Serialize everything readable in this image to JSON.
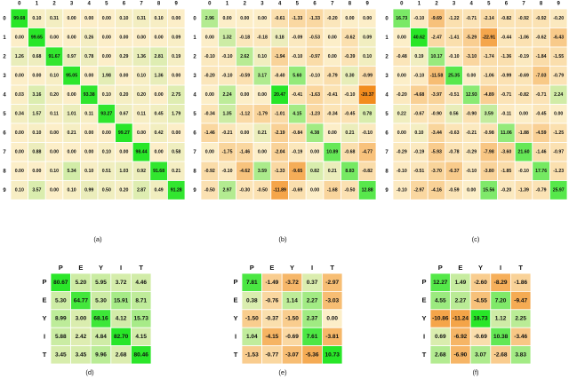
{
  "chart_data": [
    {
      "type": "heatmap",
      "caption": "(a)",
      "x_labels": [
        "0",
        "1",
        "2",
        "3",
        "4",
        "5",
        "6",
        "7",
        "8",
        "9"
      ],
      "y_labels": [
        "0",
        "1",
        "2",
        "3",
        "4",
        "5",
        "6",
        "7",
        "8",
        "9"
      ],
      "values": [
        [
          99.68,
          0.1,
          0.31,
          0,
          0,
          0,
          0.1,
          0.31,
          0.1,
          0
        ],
        [
          0,
          99.65,
          0,
          0,
          0.26,
          0,
          0,
          0,
          0,
          0.09
        ],
        [
          1.26,
          0.68,
          91.67,
          0.97,
          0.78,
          0,
          0.29,
          1.36,
          2.81,
          0.19
        ],
        [
          0,
          0,
          0.1,
          95.05,
          0,
          1.98,
          0,
          0.1,
          1.36,
          0
        ],
        [
          0.03,
          3.16,
          0.2,
          0,
          93.38,
          0.1,
          0.2,
          0.2,
          0,
          2.75
        ],
        [
          0.34,
          1.57,
          0.11,
          1.01,
          0.11,
          93.27,
          0.67,
          0.11,
          0.45,
          1.79
        ],
        [
          0,
          0.1,
          0,
          0.21,
          0,
          0,
          99.27,
          0,
          0.42,
          0
        ],
        [
          0,
          0.88,
          0,
          0,
          0,
          0.1,
          0,
          98.44,
          0,
          0.58
        ],
        [
          0,
          0,
          0.1,
          5.34,
          0.1,
          0.51,
          1.03,
          0.92,
          91.68,
          0.21
        ],
        [
          0.1,
          3.57,
          0,
          0.1,
          0.99,
          0.5,
          0.2,
          2.87,
          0.49,
          91.28
        ]
      ],
      "value_labels": [
        [
          "99.68",
          "0.10",
          "0.31",
          "0.00",
          "0.00",
          "0.00",
          "0.10",
          "0.31",
          "0.10",
          "0.00"
        ],
        [
          "0.00",
          "99.65",
          "0.00",
          "0.00",
          "0.26",
          "0.00",
          "0.00",
          "0.00",
          "0.00",
          "0.09"
        ],
        [
          "1.26",
          "0.68",
          "91.67",
          "0.97",
          "0.78",
          "0.00",
          "0.29",
          "1.36",
          "2.81",
          "0.19"
        ],
        [
          "0.00",
          "0.00",
          "0.10",
          "95.05",
          "0.00",
          "1.98",
          "0.00",
          "0.10",
          "1.36",
          "0.00"
        ],
        [
          "0.03",
          "3.16",
          "0.20",
          "0.00",
          "93.38",
          "0.10",
          "0.20",
          "0.20",
          "0.00",
          "2.75"
        ],
        [
          "0.34",
          "1.57",
          "0.11",
          "1.01",
          "0.11",
          "93.27",
          "0.67",
          "0.11",
          "0.45",
          "1.79"
        ],
        [
          "0.00",
          "0.10",
          "0.00",
          "0.21",
          "0.00",
          "0.00",
          "99.27",
          "0.00",
          "0.42",
          "0.00"
        ],
        [
          "0.00",
          "0.88",
          "0.00",
          "0.00",
          "0.00",
          "0.10",
          "0.00",
          "98.44",
          "0.00",
          "0.58"
        ],
        [
          "0.00",
          "0.00",
          "0.10",
          "5.34",
          "0.10",
          "0.51",
          "1.03",
          "0.92",
          "91.68",
          "0.21"
        ],
        [
          "0.10",
          "3.57",
          "0.00",
          "0.10",
          "0.99",
          "0.50",
          "0.20",
          "2.87",
          "0.49",
          "91.28"
        ]
      ]
    },
    {
      "type": "heatmap",
      "caption": "(b)",
      "x_labels": [
        "0",
        "1",
        "2",
        "3",
        "4",
        "5",
        "6",
        "7",
        "8",
        "9"
      ],
      "y_labels": [
        "0",
        "1",
        "2",
        "3",
        "4",
        "5",
        "6",
        "7",
        "8",
        "9"
      ],
      "values": [
        [
          2.96,
          0,
          0,
          0,
          -0.61,
          -1.33,
          -1.33,
          -0.2,
          0,
          0
        ],
        [
          0,
          1.32,
          -0.18,
          -0.18,
          0.18,
          -0.09,
          -0.53,
          0,
          -0.62,
          0.09
        ],
        [
          -0.1,
          -0.1,
          2.62,
          0.1,
          -1.94,
          -0.1,
          -0.97,
          0,
          -0.39,
          0.1
        ],
        [
          -0.2,
          -0.1,
          -0.59,
          3.17,
          -0.4,
          5.6,
          -0.1,
          -0.79,
          0.3,
          -0.99
        ],
        [
          0,
          2.24,
          0,
          0,
          20.47,
          -0.41,
          -1.63,
          -0.41,
          -0.1,
          -20.37
        ],
        [
          -0.34,
          1.35,
          -1.12,
          -1.79,
          -1.01,
          4.15,
          -1.23,
          -0.34,
          -0.45,
          0.78
        ],
        [
          -1.46,
          -0.21,
          0,
          0.21,
          -2.19,
          -0.84,
          4.38,
          0,
          0.21,
          -0.1
        ],
        [
          0,
          -1.75,
          -1.46,
          0,
          -2.04,
          -0.19,
          0,
          10.89,
          -0.68,
          -4.77
        ],
        [
          -0.92,
          -0.1,
          -4.62,
          3.59,
          -1.33,
          -9.65,
          0.82,
          0.21,
          8.83,
          -0.82
        ],
        [
          -0.5,
          2.97,
          -0.3,
          -0.5,
          -11.89,
          -0.69,
          0,
          -1.68,
          -0.5,
          12.88
        ]
      ],
      "value_labels": [
        [
          "2.96",
          "0.00",
          "0.00",
          "0.00",
          "-0.61",
          "-1.33",
          "-1.33",
          "-0.20",
          "0.00",
          "0.00"
        ],
        [
          "0.00",
          "1.32",
          "-0.18",
          "-0.18",
          "0.18",
          "-0.09",
          "-0.53",
          "0.00",
          "-0.62",
          "0.09"
        ],
        [
          "-0.10",
          "-0.10",
          "2.62",
          "0.10",
          "-1.94",
          "-0.10",
          "-0.97",
          "0.00",
          "-0.39",
          "0.10"
        ],
        [
          "-0.20",
          "-0.10",
          "-0.59",
          "3.17",
          "-0.40",
          "5.60",
          "-0.10",
          "-0.79",
          "0.30",
          "-0.99"
        ],
        [
          "0.00",
          "2.24",
          "0.00",
          "0.00",
          "20.47",
          "-0.41",
          "-1.63",
          "-0.41",
          "-0.10",
          "-20.37"
        ],
        [
          "-0.34",
          "1.35",
          "-1.12",
          "-1.79",
          "-1.01",
          "4.15",
          "-1.23",
          "-0.34",
          "-0.45",
          "0.78"
        ],
        [
          "-1.46",
          "-0.21",
          "0.00",
          "0.21",
          "-2.19",
          "-0.84",
          "4.38",
          "0.00",
          "0.21",
          "-0.10"
        ],
        [
          "0.00",
          "-1.75",
          "-1.46",
          "0.00",
          "-2.04",
          "-0.19",
          "0.00",
          "10.89",
          "-0.68",
          "-4.77"
        ],
        [
          "-0.92",
          "-0.10",
          "-4.62",
          "3.59",
          "-1.33",
          "-9.65",
          "0.82",
          "0.21",
          "8.83",
          "-0.82"
        ],
        [
          "-0.50",
          "2.97",
          "-0.30",
          "-0.50",
          "-11.89",
          "-0.69",
          "0.00",
          "-1.68",
          "-0.50",
          "12.88"
        ]
      ]
    },
    {
      "type": "heatmap",
      "caption": "(c)",
      "x_labels": [
        "0",
        "1",
        "2",
        "3",
        "4",
        "5",
        "6",
        "7",
        "8",
        "9"
      ],
      "y_labels": [
        "0",
        "1",
        "2",
        "3",
        "4",
        "5",
        "6",
        "7",
        "8",
        "9"
      ],
      "values": [
        [
          16.73,
          -0.1,
          -9.69,
          -1.22,
          -0.71,
          -2.14,
          -0.82,
          -0.92,
          -0.92,
          -0.2
        ],
        [
          0,
          40.62,
          -2.47,
          -1.41,
          -5.29,
          -22.91,
          -0.44,
          -1.06,
          -0.62,
          -6.43
        ],
        [
          -0.48,
          0.19,
          10.17,
          -0.1,
          -3.1,
          -1.74,
          -1.36,
          -0.19,
          -1.84,
          -1.55
        ],
        [
          0,
          -0.1,
          -11.58,
          25.35,
          0,
          -1.06,
          -0.99,
          -0.69,
          -7.03,
          -0.79
        ],
        [
          -0.2,
          -4.68,
          -3.97,
          -0.51,
          12.93,
          -4.89,
          -0.71,
          -0.82,
          -0.71,
          2.24
        ],
        [
          0.22,
          -0.67,
          -0.9,
          0.56,
          -0.9,
          3.59,
          -0.11,
          0,
          -0.45,
          0
        ],
        [
          0,
          0.1,
          -3.44,
          -0.63,
          -0.21,
          -0.98,
          11.06,
          -1.88,
          -4.59,
          -1.25
        ],
        [
          -0.29,
          -0.19,
          -5.93,
          -0.78,
          -0.29,
          -7.98,
          -3.6,
          21.6,
          -1.46,
          -0.97
        ],
        [
          -0.1,
          -0.51,
          -3.7,
          -6.37,
          -0.1,
          -3.8,
          -1.85,
          -0.1,
          17.76,
          -1.23
        ],
        [
          -0.1,
          -2.97,
          -4.16,
          -0.59,
          0,
          15.56,
          -0.2,
          -1.39,
          -0.79,
          25.97
        ]
      ],
      "value_labels": [
        [
          "16.73",
          "-0.10",
          "-9.69",
          "-1.22",
          "-0.71",
          "-2.14",
          "-0.82",
          "-0.92",
          "-0.92",
          "-0.20"
        ],
        [
          "0.00",
          "40.62",
          "-2.47",
          "-1.41",
          "-5.29",
          "-22.91",
          "-0.44",
          "-1.06",
          "-0.62",
          "-6.43"
        ],
        [
          "-0.48",
          "0.19",
          "10.17",
          "-0.10",
          "-3.10",
          "-1.74",
          "-1.36",
          "-0.19",
          "-1.84",
          "-1.55"
        ],
        [
          "0.00",
          "-0.10",
          "-11.58",
          "25.35",
          "0.00",
          "-1.06",
          "-0.99",
          "-0.69",
          "-7.03",
          "-0.79"
        ],
        [
          "-0.20",
          "-4.68",
          "-3.97",
          "-0.51",
          "12.93",
          "-4.89",
          "-0.71",
          "-0.82",
          "-0.71",
          "2.24"
        ],
        [
          "0.22",
          "-0.67",
          "-0.90",
          "0.56",
          "-0.90",
          "3.59",
          "-0.11",
          "0.00",
          "-0.45",
          "0.00"
        ],
        [
          "0.00",
          "0.10",
          "-3.44",
          "-0.63",
          "-0.21",
          "-0.98",
          "11.06",
          "-1.88",
          "-4.59",
          "-1.25"
        ],
        [
          "-0.29",
          "-0.19",
          "-5.93",
          "-0.78",
          "-0.29",
          "-7.98",
          "-3.60",
          "21.60",
          "-1.46",
          "-0.97"
        ],
        [
          "-0.10",
          "-0.51",
          "-3.70",
          "-6.37",
          "-0.10",
          "-3.80",
          "-1.85",
          "-0.10",
          "17.76",
          "-1.23"
        ],
        [
          "-0.10",
          "-2.97",
          "-4.16",
          "-0.59",
          "0.00",
          "15.56",
          "-0.20",
          "-1.39",
          "-0.79",
          "25.97"
        ]
      ]
    },
    {
      "type": "heatmap",
      "caption": "(d)",
      "x_labels": [
        "P",
        "E",
        "Y",
        "I",
        "T"
      ],
      "y_labels": [
        "P",
        "E",
        "Y",
        "I",
        "T"
      ],
      "values": [
        [
          80.67,
          5.2,
          5.95,
          3.72,
          4.46
        ],
        [
          5.3,
          64.77,
          5.3,
          15.91,
          8.71
        ],
        [
          8.99,
          3,
          68.16,
          4.12,
          15.73
        ],
        [
          5.88,
          2.42,
          4.84,
          82.7,
          4.15
        ],
        [
          3.45,
          3.45,
          9.96,
          2.68,
          80.46
        ]
      ],
      "value_labels": [
        [
          "80.67",
          "5.20",
          "5.95",
          "3.72",
          "4.46"
        ],
        [
          "5.30",
          "64.77",
          "5.30",
          "15.91",
          "8.71"
        ],
        [
          "8.99",
          "3.00",
          "68.16",
          "4.12",
          "15.73"
        ],
        [
          "5.88",
          "2.42",
          "4.84",
          "82.70",
          "4.15"
        ],
        [
          "3.45",
          "3.45",
          "9.96",
          "2.68",
          "80.46"
        ]
      ]
    },
    {
      "type": "heatmap",
      "caption": "(e)",
      "x_labels": [
        "P",
        "E",
        "Y",
        "I",
        "T"
      ],
      "y_labels": [
        "P",
        "E",
        "Y",
        "I",
        "T"
      ],
      "values": [
        [
          7.81,
          -1.49,
          -3.72,
          0.37,
          -2.97
        ],
        [
          0.38,
          -0.76,
          1.14,
          2.27,
          -3.03
        ],
        [
          -1.5,
          -0.37,
          -1.5,
          2.37,
          0
        ],
        [
          1.04,
          -4.15,
          -0.69,
          7.61,
          -3.81
        ],
        [
          -1.53,
          -0.77,
          -3.07,
          -5.36,
          10.73
        ]
      ],
      "value_labels": [
        [
          "7.81",
          "-1.49",
          "-3.72",
          "0.37",
          "-2.97"
        ],
        [
          "0.38",
          "-0.76",
          "1.14",
          "2.27",
          "-3.03"
        ],
        [
          "-1.50",
          "-0.37",
          "-1.50",
          "2.37",
          "0.00"
        ],
        [
          "1.04",
          "-4.15",
          "-0.69",
          "7.61",
          "-3.81"
        ],
        [
          "-1.53",
          "-0.77",
          "-3.07",
          "-5.36",
          "10.73"
        ]
      ]
    },
    {
      "type": "heatmap",
      "caption": "(f)",
      "x_labels": [
        "P",
        "E",
        "Y",
        "I",
        "T"
      ],
      "y_labels": [
        "P",
        "E",
        "Y",
        "I",
        "T"
      ],
      "values": [
        [
          12.27,
          1.49,
          -2.6,
          -8.29,
          -1.86
        ],
        [
          4.55,
          2.27,
          -4.55,
          7.2,
          -9.47
        ],
        [
          -10.86,
          -11.24,
          18.73,
          1.12,
          2.25
        ],
        [
          0.69,
          -6.92,
          -0.69,
          10.38,
          -3.46
        ],
        [
          2.68,
          -6.9,
          3.07,
          -2.68,
          3.83
        ]
      ],
      "value_labels": [
        [
          "12.27",
          "1.49",
          "-2.60",
          "-8.29",
          "-1.86"
        ],
        [
          "4.55",
          "2.27",
          "-4.55",
          "7.20",
          "-9.47"
        ],
        [
          "-10.86",
          "-11.24",
          "18.73",
          "1.12",
          "2.25"
        ],
        [
          "0.69",
          "-6.92",
          "-0.69",
          "10.38",
          "-3.46"
        ],
        [
          "2.68",
          "-6.90",
          "3.07",
          "-2.68",
          "3.83"
        ]
      ]
    }
  ]
}
